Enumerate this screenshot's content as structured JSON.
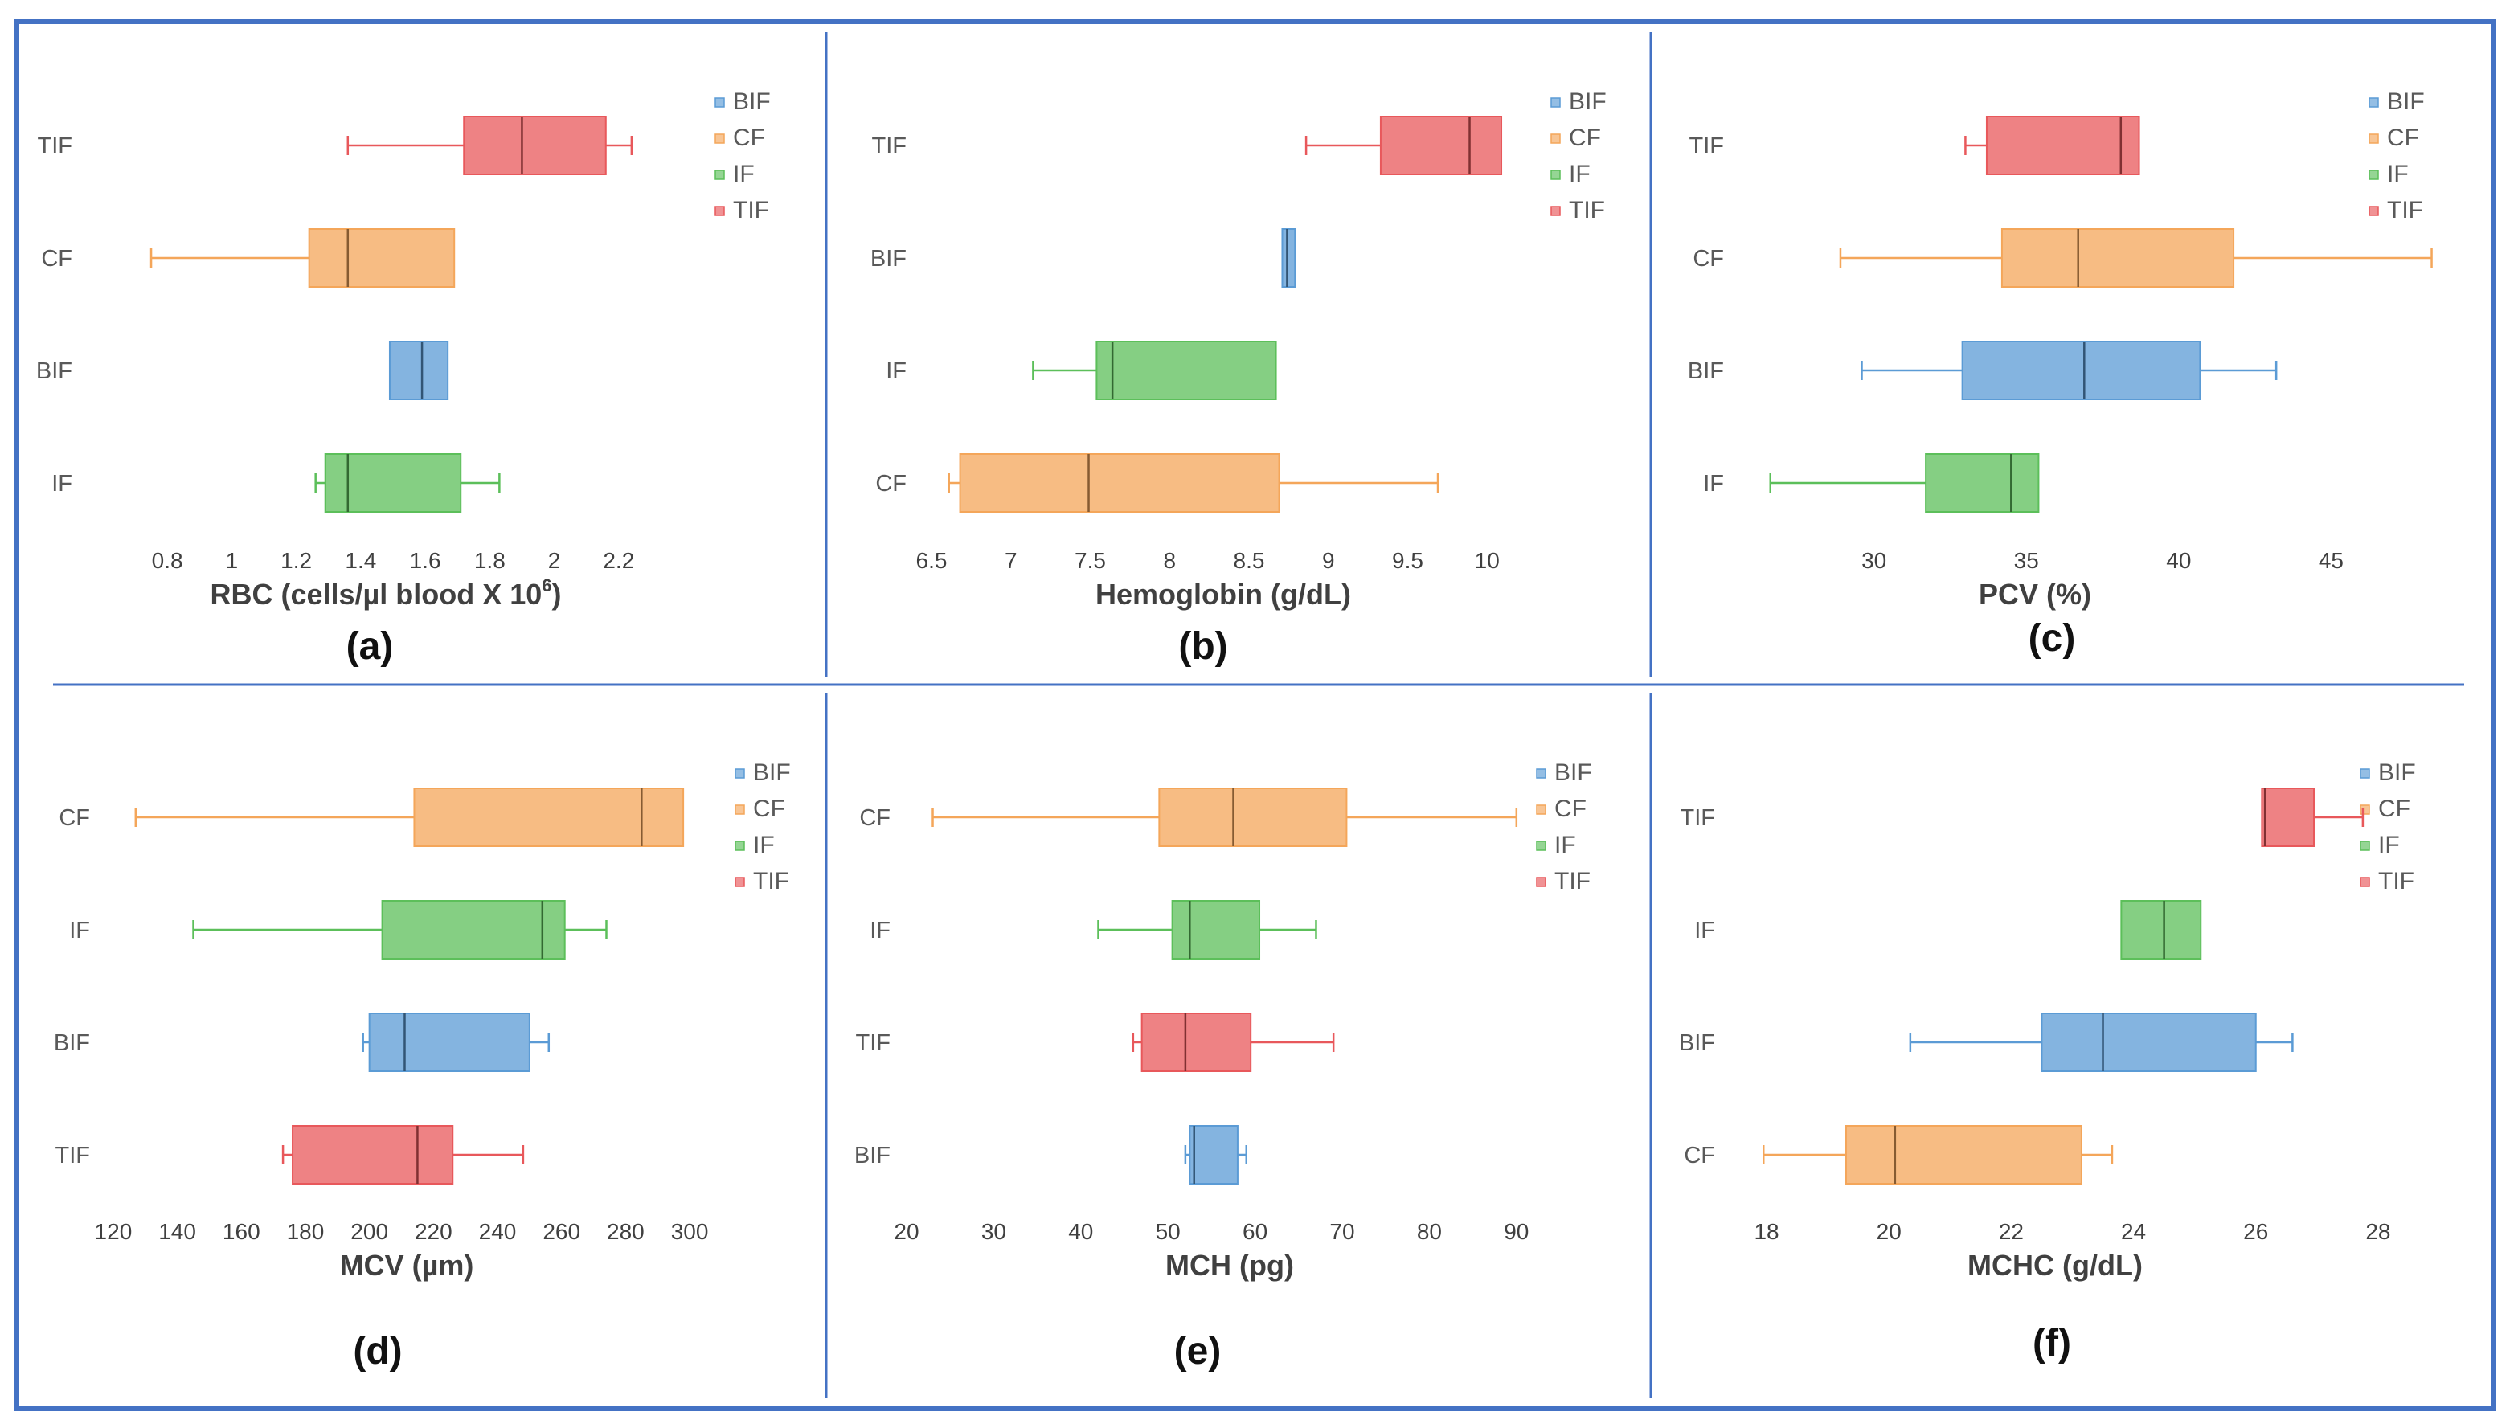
{
  "colors": {
    "BIF": "#5b9bd5",
    "CF": "#f4a65a",
    "IF": "#5cbf5a",
    "TIF": "#e8585b",
    "frame": "#4472c4",
    "divider": "#4472c4"
  },
  "chart_data": [
    {
      "type": "boxplot",
      "panel_label": "(a)",
      "xlabel": "RBC (cells/µl blood X 10",
      "xlabel_superscript": "6",
      "xlabel_suffix": ")",
      "xlim": [
        0.7,
        2.35
      ],
      "ticks": [
        0.8,
        1.0,
        1.2,
        1.4,
        1.6,
        1.8,
        2.0,
        2.2
      ],
      "tick_labels": [
        "0.8",
        "1",
        "1.2",
        "1.4",
        "1.6",
        "1.8",
        "2",
        "2.2"
      ],
      "legend": [
        "BIF",
        "CF",
        "IF",
        "TIF"
      ],
      "groups": [
        {
          "name": "TIF",
          "min": 1.36,
          "q1": 1.72,
          "median": 1.9,
          "q3": 2.16,
          "max": 2.24
        },
        {
          "name": "CF",
          "min": 0.75,
          "q1": 1.24,
          "median": 1.36,
          "q3": 1.69,
          "max": 1.69
        },
        {
          "name": "BIF",
          "min": 1.49,
          "q1": 1.49,
          "median": 1.59,
          "q3": 1.67,
          "max": 1.67
        },
        {
          "name": "IF",
          "min": 1.26,
          "q1": 1.29,
          "median": 1.36,
          "q3": 1.71,
          "max": 1.83
        }
      ]
    },
    {
      "type": "boxplot",
      "panel_label": "(b)",
      "xlabel": "Hemoglobin (g/dL)",
      "xlim": [
        6.5,
        10.1
      ],
      "ticks": [
        6.5,
        7.0,
        7.5,
        8.0,
        8.5,
        9.0,
        9.5,
        10.0
      ],
      "tick_labels": [
        "6.5",
        "7",
        "7.5",
        "8",
        "8.5",
        "9",
        "9.5",
        "10"
      ],
      "legend": [
        "BIF",
        "CF",
        "IF",
        "TIF"
      ],
      "groups": [
        {
          "name": "TIF",
          "min": 8.86,
          "q1": 9.33,
          "median": 9.89,
          "q3": 10.09,
          "max": 10.09
        },
        {
          "name": "BIF",
          "min": 8.71,
          "q1": 8.71,
          "median": 8.74,
          "q3": 8.79,
          "max": 8.79
        },
        {
          "name": "IF",
          "min": 7.14,
          "q1": 7.54,
          "median": 7.64,
          "q3": 8.67,
          "max": 8.67
        },
        {
          "name": "CF",
          "min": 6.61,
          "q1": 6.68,
          "median": 7.49,
          "q3": 8.69,
          "max": 9.69
        }
      ]
    },
    {
      "type": "boxplot",
      "panel_label": "(c)",
      "xlabel": "PCV (%)",
      "xlim": [
        26,
        50
      ],
      "ticks": [
        30,
        35,
        40,
        45
      ],
      "tick_labels": [
        "30",
        "35",
        "40",
        "45"
      ],
      "legend": [
        "BIF",
        "CF",
        "IF",
        "TIF"
      ],
      "groups": [
        {
          "name": "TIF",
          "min": 33.0,
          "q1": 33.7,
          "median": 38.1,
          "q3": 38.7,
          "max": 38.7
        },
        {
          "name": "CF",
          "min": 28.9,
          "q1": 34.2,
          "median": 36.7,
          "q3": 41.8,
          "max": 48.3
        },
        {
          "name": "BIF",
          "min": 29.6,
          "q1": 32.9,
          "median": 36.9,
          "q3": 40.7,
          "max": 43.2
        },
        {
          "name": "IF",
          "min": 26.6,
          "q1": 31.7,
          "median": 34.5,
          "q3": 35.4,
          "max": 35.4
        }
      ]
    },
    {
      "type": "boxplot",
      "panel_label": "(d)",
      "xlabel": "MCV (µm)",
      "xlim": [
        115,
        305
      ],
      "ticks": [
        120,
        140,
        160,
        180,
        200,
        220,
        240,
        260,
        280,
        300
      ],
      "tick_labels": [
        "120",
        "140",
        "160",
        "180",
        "200",
        "220",
        "240",
        "260",
        "280",
        "300"
      ],
      "legend": [
        "BIF",
        "CF",
        "IF",
        "TIF"
      ],
      "groups": [
        {
          "name": "CF",
          "min": 127,
          "q1": 214,
          "median": 285,
          "q3": 298,
          "max": 298
        },
        {
          "name": "IF",
          "min": 145,
          "q1": 204,
          "median": 254,
          "q3": 261,
          "max": 274
        },
        {
          "name": "BIF",
          "min": 198,
          "q1": 200,
          "median": 211,
          "q3": 250,
          "max": 256
        },
        {
          "name": "TIF",
          "min": 173,
          "q1": 176,
          "median": 215,
          "q3": 226,
          "max": 248
        }
      ]
    },
    {
      "type": "boxplot",
      "panel_label": "(e)",
      "xlabel": "MCH (pg)",
      "xlim": [
        20,
        95
      ],
      "ticks": [
        20,
        30,
        40,
        50,
        60,
        70,
        80,
        90
      ],
      "tick_labels": [
        "20",
        "30",
        "40",
        "50",
        "60",
        "70",
        "80",
        "90"
      ],
      "legend": [
        "BIF",
        "CF",
        "IF",
        "TIF"
      ],
      "groups": [
        {
          "name": "CF",
          "min": 23,
          "q1": 49,
          "median": 57.5,
          "q3": 70.5,
          "max": 90
        },
        {
          "name": "IF",
          "min": 42,
          "q1": 50.5,
          "median": 52.5,
          "q3": 60.5,
          "max": 67
        },
        {
          "name": "TIF",
          "min": 46,
          "q1": 47,
          "median": 52,
          "q3": 59.5,
          "max": 69
        },
        {
          "name": "BIF",
          "min": 52,
          "q1": 52.5,
          "median": 53,
          "q3": 58,
          "max": 59
        }
      ]
    },
    {
      "type": "boxplot",
      "panel_label": "(f)",
      "xlabel": "MCHC (g/dL)",
      "xlim": [
        17.5,
        29
      ],
      "ticks": [
        18,
        20,
        22,
        24,
        26,
        28
      ],
      "tick_labels": [
        "18",
        "20",
        "22",
        "24",
        "26",
        "28"
      ],
      "legend": [
        "BIF",
        "CF",
        "IF",
        "TIF"
      ],
      "groups": [
        {
          "name": "TIF",
          "min": 26.1,
          "q1": 26.1,
          "median": 26.15,
          "q3": 26.95,
          "max": 27.75
        },
        {
          "name": "IF",
          "min": 23.8,
          "q1": 23.8,
          "median": 24.5,
          "q3": 25.1,
          "max": 25.1
        },
        {
          "name": "BIF",
          "min": 20.35,
          "q1": 22.5,
          "median": 23.5,
          "q3": 26.0,
          "max": 26.6
        },
        {
          "name": "CF",
          "min": 17.95,
          "q1": 19.3,
          "median": 20.1,
          "q3": 23.15,
          "max": 23.65
        }
      ]
    }
  ]
}
